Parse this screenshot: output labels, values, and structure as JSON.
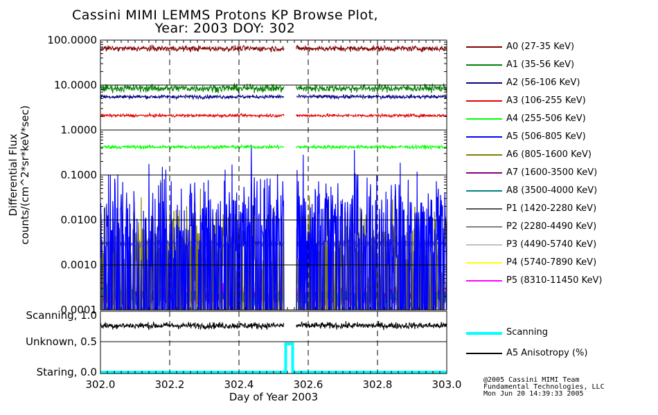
{
  "title_line1": "Cassini MIMI LEMMS Protons KP Browse Plot,",
  "title_line2": "Year: 2003 DOY: 302",
  "credits": [
    "@2005 Cassini MIMI Team",
    "Fundamental Technologies, LLC",
    "Mon Jun 20 14:39:33 2005"
  ],
  "chart_data": [
    {
      "type": "line",
      "panel": "flux",
      "ylabel_line1": "Differential Flux",
      "ylabel_line2": "counts/(cm^2*sr*keV*sec)",
      "yscale": "log",
      "ylim": [
        0.0001,
        100.0
      ],
      "yticks": [
        100.0,
        10.0,
        1.0,
        0.1,
        0.01,
        0.001,
        0.0001
      ],
      "ytick_labels": [
        "100.0000",
        "10.0000",
        "1.0000",
        "0.1000",
        "0.0100",
        "0.0010",
        "0.0001"
      ],
      "xlim": [
        302.0,
        303.0
      ],
      "data_gap": [
        302.53,
        302.565
      ],
      "series": [
        {
          "name": "A0 (27-35 KeV)",
          "color": "#800000",
          "level": 65,
          "noise": 0.09
        },
        {
          "name": "A1 (35-56 KeV)",
          "color": "#008000",
          "level": 8.5,
          "noise": 0.12
        },
        {
          "name": "A2 (56-106 KeV)",
          "color": "#000080",
          "level": 5.5,
          "noise": 0.06
        },
        {
          "name": "A3 (106-255 KeV)",
          "color": "#e00000",
          "level": 2.1,
          "noise": 0.05
        },
        {
          "name": "A4 (255-506 KeV)",
          "color": "#00ff00",
          "level": 0.42,
          "noise": 0.06
        },
        {
          "name": "A5 (506-805 KeV)",
          "color": "#0000ff",
          "level": 0.012,
          "noise": 0.9
        },
        {
          "name": "A6 (805-1600 KeV)",
          "color": "#808000",
          "level": 0.003,
          "noise": 0.8
        },
        {
          "name": "A7 (1600-3500 KeV)",
          "color": "#800080",
          "level": 0.0002,
          "noise": 0.3
        },
        {
          "name": "A8 (3500-4000 KeV)",
          "color": "#008080",
          "level": 0.0002,
          "noise": 0.3
        },
        {
          "name": "P1 (1420-2280 KeV)",
          "color": "#555555",
          "level": 0.003,
          "noise": 0.1
        },
        {
          "name": "P2 (2280-4490 KeV)",
          "color": "#808080",
          "level": 0.0029,
          "noise": 0.1
        },
        {
          "name": "P3 (4490-5740 KeV)",
          "color": "#c0c0c0",
          "level": 0.0003,
          "noise": 0.3
        },
        {
          "name": "P4 (5740-7890 KeV)",
          "color": "#ffff00",
          "level": 0.0002,
          "noise": 0.3
        },
        {
          "name": "P5 (8310-11450 KeV)",
          "color": "#ff00ff",
          "level": 0.0002,
          "noise": 0.3
        }
      ]
    },
    {
      "type": "line",
      "panel": "mode",
      "ytick_labels": [
        "Scanning, 1.0",
        "Unknown, 0.5",
        "Staring, 0.0"
      ],
      "ylim": [
        0.0,
        1.0
      ],
      "xlim": [
        302.0,
        303.0
      ],
      "xticks": [
        302.0,
        302.2,
        302.4,
        302.6,
        302.8,
        303.0
      ],
      "xtick_labels": [
        "302.0",
        "302.2",
        "302.4",
        "302.6",
        "302.8",
        "303.0"
      ],
      "xlabel": "Day of Year 2003",
      "scanning": {
        "name": "Scanning",
        "color": "#00ffff",
        "baseline": 0.0,
        "unknown_interval": [
          302.535,
          302.555
        ],
        "unknown_value": 0.5
      },
      "anisotropy": {
        "name": "A5 Anisotropy (%)",
        "color": "#000000",
        "level": 0.82,
        "noise": 0.05
      }
    }
  ]
}
